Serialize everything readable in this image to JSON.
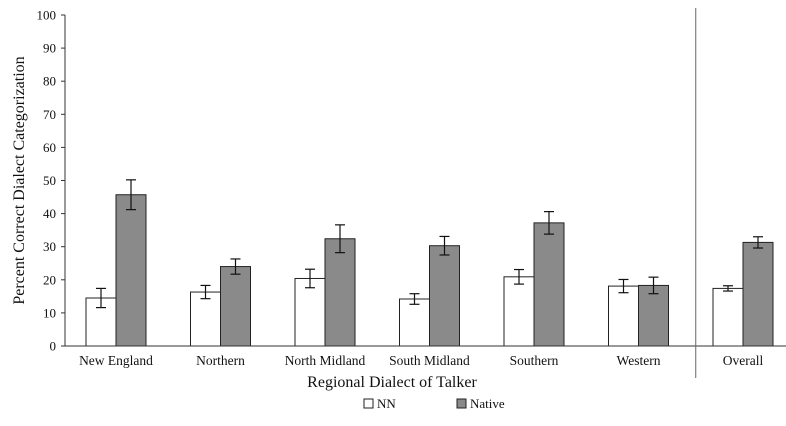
{
  "chart_data": {
    "type": "bar",
    "xlabel": "Regional Dialect of Talker",
    "ylabel": "Percent Correct Dialect Categorization",
    "ylim": [
      0,
      100
    ],
    "yticks": [
      "0",
      "10",
      "20",
      "30",
      "40",
      "50",
      "60",
      "70",
      "80",
      "90",
      "100"
    ],
    "categories": [
      "New England",
      "Northern",
      "North Midland",
      "South Midland",
      "Southern",
      "Western",
      "Overall"
    ],
    "series": [
      {
        "name": "NN",
        "color": "#ffffff",
        "values": [
          14.5,
          16.3,
          20.4,
          14.2,
          20.9,
          18.1,
          17.4
        ],
        "error": [
          2.9,
          2.0,
          2.8,
          1.6,
          2.2,
          2.0,
          0.8
        ]
      },
      {
        "name": "Native",
        "color": "#8a8a8a",
        "values": [
          45.7,
          24.0,
          32.4,
          30.3,
          37.2,
          18.3,
          31.3
        ],
        "error": [
          4.5,
          2.3,
          4.2,
          2.8,
          3.4,
          2.5,
          1.7
        ]
      }
    ],
    "grid": false,
    "legend_position": "bottom-center",
    "separator_before": "Overall"
  }
}
